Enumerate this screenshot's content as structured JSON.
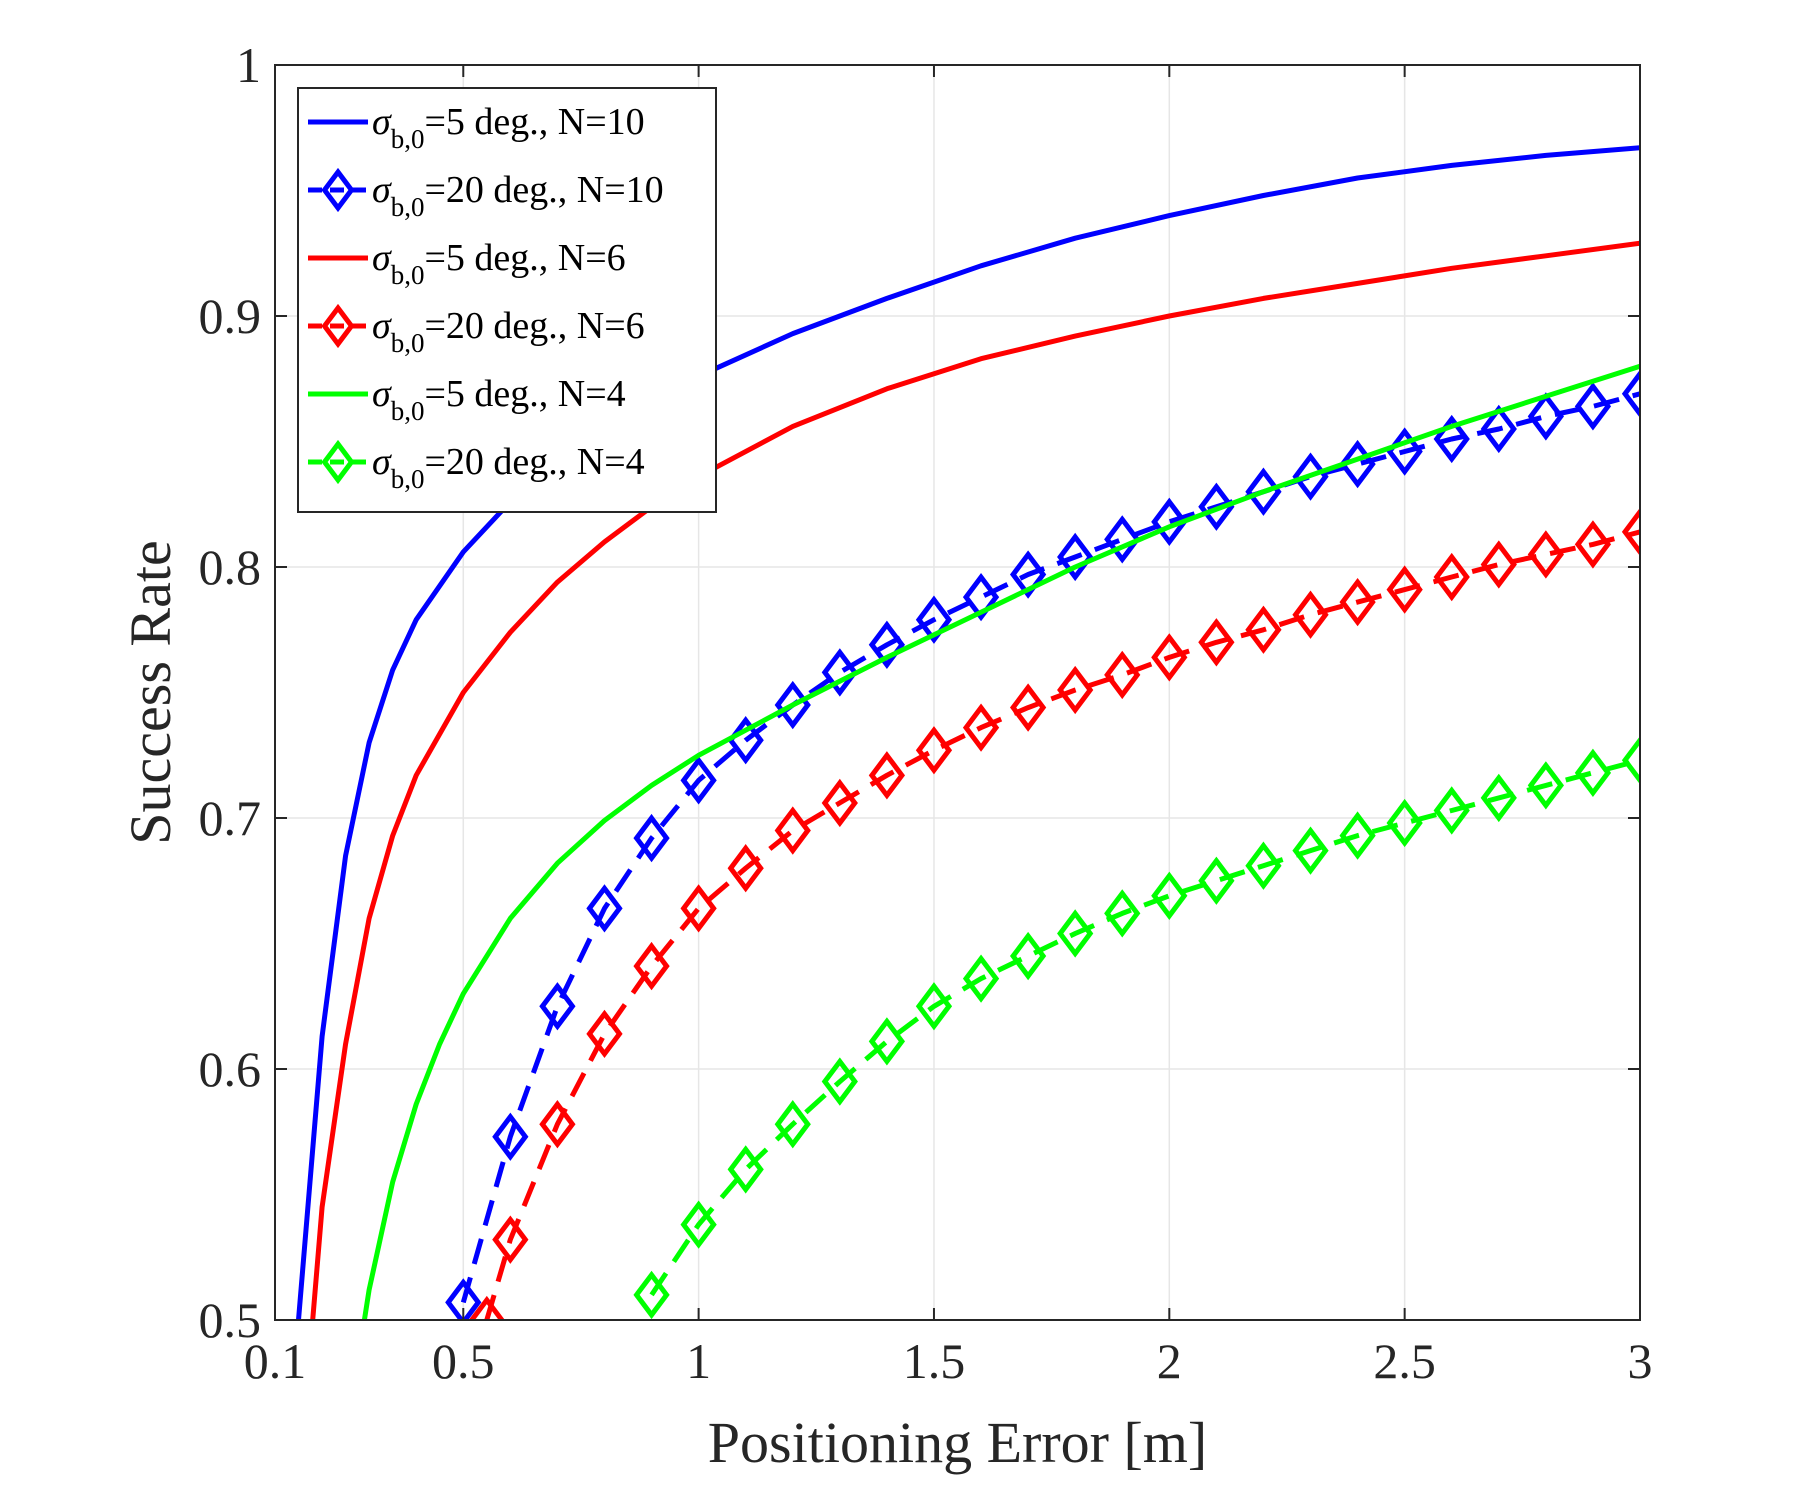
{
  "chart_data": {
    "type": "line",
    "xlabel": "Positioning Error [m]",
    "ylabel": "Success Rate",
    "xlim": [
      0.1,
      3
    ],
    "ylim": [
      0.5,
      1
    ],
    "xticks": [
      0.1,
      0.5,
      1,
      1.5,
      2,
      2.5,
      3
    ],
    "xtick_labels": [
      "0.1",
      "0.5",
      "1",
      "1.5",
      "2",
      "2.5",
      "3"
    ],
    "yticks": [
      0.5,
      0.6,
      0.7,
      0.8,
      0.9,
      1
    ],
    "ytick_labels": [
      "0.5",
      "0.6",
      "0.7",
      "0.8",
      "0.9",
      "1"
    ],
    "grid": true,
    "legend_position": "top-left",
    "series": [
      {
        "name": "σb,0=5 deg., N=10",
        "legend": {
          "symbol": "σ",
          "subscript": "b,0",
          "rest": "=5 deg., N=10"
        },
        "color": "#0000ff",
        "dash": "solid",
        "marker": "none",
        "x": [
          0.15,
          0.2,
          0.25,
          0.3,
          0.35,
          0.4,
          0.5,
          0.6,
          0.7,
          0.8,
          0.9,
          1.0,
          1.2,
          1.4,
          1.6,
          1.8,
          2.0,
          2.2,
          2.4,
          2.6,
          2.8,
          3.0
        ],
        "y": [
          0.5,
          0.613,
          0.685,
          0.73,
          0.759,
          0.779,
          0.806,
          0.826,
          0.842,
          0.855,
          0.866,
          0.876,
          0.893,
          0.907,
          0.92,
          0.931,
          0.94,
          0.948,
          0.955,
          0.96,
          0.964,
          0.967
        ]
      },
      {
        "name": "σb,0=20 deg., N=10",
        "legend": {
          "symbol": "σ",
          "subscript": "b,0",
          "rest": "=20 deg., N=10"
        },
        "color": "#0000ff",
        "dash": "dashed",
        "marker": "diamond",
        "x": [
          0.5,
          0.6,
          0.7,
          0.8,
          0.9,
          1.0,
          1.1,
          1.2,
          1.3,
          1.4,
          1.5,
          1.6,
          1.7,
          1.8,
          1.9,
          2.0,
          2.1,
          2.2,
          2.3,
          2.4,
          2.5,
          2.6,
          2.7,
          2.8,
          2.9,
          3.0
        ],
        "y": [
          0.507,
          0.573,
          0.625,
          0.664,
          0.692,
          0.715,
          0.731,
          0.745,
          0.758,
          0.769,
          0.779,
          0.788,
          0.797,
          0.804,
          0.811,
          0.818,
          0.824,
          0.83,
          0.836,
          0.841,
          0.846,
          0.851,
          0.855,
          0.86,
          0.864,
          0.869
        ]
      },
      {
        "name": "σb,0=5 deg., N=6",
        "legend": {
          "symbol": "σ",
          "subscript": "b,0",
          "rest": "=5 deg., N=6"
        },
        "color": "#ff0000",
        "dash": "solid",
        "marker": "none",
        "x": [
          0.18,
          0.2,
          0.25,
          0.3,
          0.35,
          0.4,
          0.5,
          0.6,
          0.7,
          0.8,
          0.9,
          1.0,
          1.2,
          1.4,
          1.6,
          1.8,
          2.0,
          2.2,
          2.4,
          2.6,
          2.8,
          3.0
        ],
        "y": [
          0.5,
          0.545,
          0.61,
          0.66,
          0.693,
          0.717,
          0.75,
          0.774,
          0.794,
          0.81,
          0.824,
          0.836,
          0.856,
          0.871,
          0.883,
          0.892,
          0.9,
          0.907,
          0.913,
          0.919,
          0.924,
          0.929
        ]
      },
      {
        "name": "σb,0=20 deg., N=6",
        "legend": {
          "symbol": "σ",
          "subscript": "b,0",
          "rest": "=20 deg., N=6"
        },
        "color": "#ff0000",
        "dash": "dashed",
        "marker": "diamond",
        "x": [
          0.55,
          0.6,
          0.7,
          0.8,
          0.9,
          1.0,
          1.1,
          1.2,
          1.3,
          1.4,
          1.5,
          1.6,
          1.7,
          1.8,
          1.9,
          2.0,
          2.1,
          2.2,
          2.3,
          2.4,
          2.5,
          2.6,
          2.7,
          2.8,
          2.9,
          3.0
        ],
        "y": [
          0.5,
          0.532,
          0.578,
          0.614,
          0.641,
          0.664,
          0.68,
          0.695,
          0.706,
          0.717,
          0.727,
          0.736,
          0.744,
          0.751,
          0.757,
          0.764,
          0.77,
          0.775,
          0.781,
          0.786,
          0.791,
          0.796,
          0.801,
          0.805,
          0.809,
          0.814
        ]
      },
      {
        "name": "σb,0=5 deg., N=4",
        "legend": {
          "symbol": "σ",
          "subscript": "b,0",
          "rest": "=5 deg., N=4"
        },
        "color": "#00ff00",
        "dash": "solid",
        "marker": "none",
        "x": [
          0.29,
          0.3,
          0.35,
          0.4,
          0.45,
          0.5,
          0.6,
          0.7,
          0.8,
          0.9,
          1.0,
          1.2,
          1.4,
          1.6,
          1.8,
          2.0,
          2.2,
          2.4,
          2.6,
          2.8,
          3.0
        ],
        "y": [
          0.5,
          0.512,
          0.555,
          0.586,
          0.61,
          0.63,
          0.66,
          0.682,
          0.699,
          0.713,
          0.725,
          0.745,
          0.764,
          0.782,
          0.8,
          0.816,
          0.83,
          0.843,
          0.856,
          0.868,
          0.88
        ]
      },
      {
        "name": "σb,0=20 deg., N=4",
        "legend": {
          "symbol": "σ",
          "subscript": "b,0",
          "rest": "=20 deg., N=4"
        },
        "color": "#00ff00",
        "dash": "dashed",
        "marker": "diamond",
        "x": [
          0.9,
          1.0,
          1.1,
          1.2,
          1.3,
          1.4,
          1.5,
          1.6,
          1.7,
          1.8,
          1.9,
          2.0,
          2.1,
          2.2,
          2.3,
          2.4,
          2.5,
          2.6,
          2.7,
          2.8,
          2.9,
          3.0
        ],
        "y": [
          0.51,
          0.538,
          0.56,
          0.578,
          0.595,
          0.611,
          0.625,
          0.636,
          0.645,
          0.654,
          0.662,
          0.669,
          0.675,
          0.681,
          0.687,
          0.693,
          0.698,
          0.703,
          0.708,
          0.713,
          0.718,
          0.723
        ]
      }
    ]
  }
}
